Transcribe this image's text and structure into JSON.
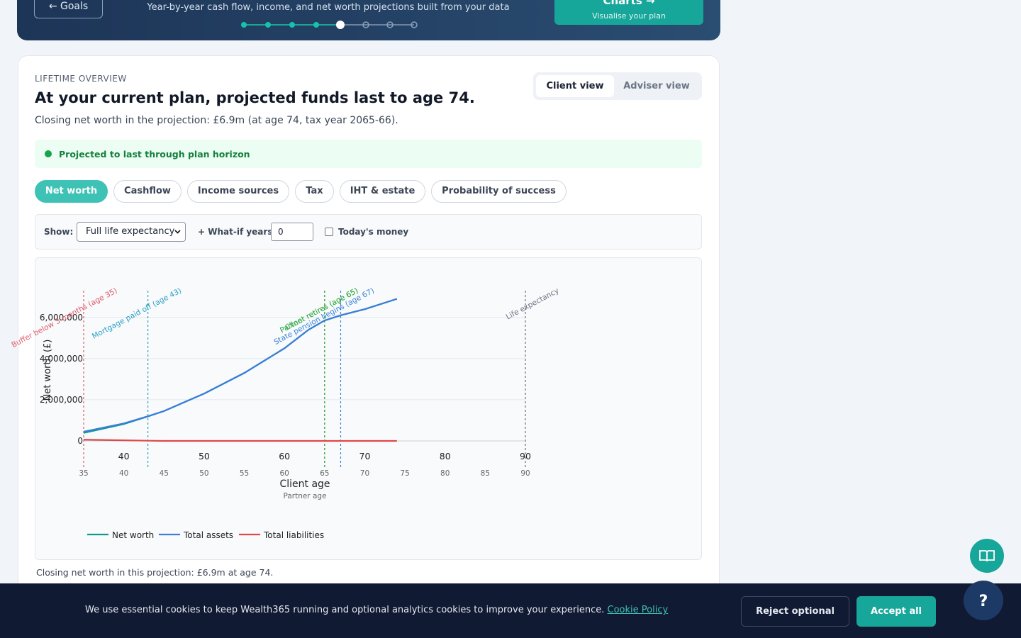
{
  "header": {
    "back_button": "← Goals",
    "subtitle": "Year-by-year cash flow, income, and net worth projections built from your data",
    "next_button": {
      "title": "Charts →",
      "subtitle": "Visualise your plan"
    }
  },
  "overview": {
    "eyebrow": "LIFETIME OVERVIEW",
    "heading": "At your current plan, projected funds last to age 74.",
    "summary": "Closing net worth in the projection: £6.9m (at age 74, tax year 2065-66).",
    "view_toggle": [
      "Client view",
      "Adviser view"
    ],
    "status": "Projected to last through plan horizon",
    "tabs": [
      "Net worth",
      "Cashflow",
      "Income sources",
      "Tax",
      "IHT & estate",
      "Probability of success"
    ],
    "controls": {
      "show_label": "Show:",
      "show_value": "Full life expectancy",
      "whatif_label": "+ What-if years:",
      "whatif_value": 0,
      "todays_money": "Today's money"
    }
  },
  "chart_data": {
    "type": "line",
    "y_label": "Net worth (£)",
    "x_label": "Client age",
    "x2_label": "Partner age",
    "x": [
      35,
      40,
      43,
      45,
      50,
      55,
      60,
      63,
      65,
      67,
      70,
      74
    ],
    "series": [
      {
        "name": "Net worth",
        "color": "#0f9a8c",
        "values": [
          390000,
          820000,
          1190000,
          1450000,
          2300000,
          3300000,
          4500000,
          5400000,
          5850000,
          6100000,
          6400000,
          6900000
        ]
      },
      {
        "name": "Total assets",
        "color": "#3b7dd8",
        "values": [
          450000,
          850000,
          1200000,
          1450000,
          2300000,
          3300000,
          4500000,
          5400000,
          5850000,
          6100000,
          6400000,
          6900000
        ]
      },
      {
        "name": "Total liabilities",
        "color": "#e04848",
        "values": [
          60000,
          30000,
          10000,
          0,
          0,
          0,
          0,
          0,
          0,
          0,
          0,
          0
        ]
      }
    ],
    "xlim": [
      35,
      90
    ],
    "xticks": [
      40,
      50,
      60,
      70,
      80,
      90
    ],
    "x2ticks": [
      35,
      40,
      45,
      50,
      55,
      60,
      65,
      70,
      75,
      80,
      85,
      90
    ],
    "ylim": [
      0,
      7300000
    ],
    "yticks": [
      0,
      {
        "value": 2000000,
        "label": "2,000,000"
      },
      {
        "value": 4000000,
        "label": "4,000,000"
      },
      {
        "value": 6000000,
        "label": "6,000,000"
      }
    ],
    "grid": true,
    "annotations": [
      {
        "x": 35,
        "label": "Buffer below 3 months (age 35)",
        "color": "#e05c6a"
      },
      {
        "x": 43,
        "label": "Mortgage paid off (age 43)",
        "color": "#2a9fc4"
      },
      {
        "x": 65,
        "label": "Partner retires (age 65)",
        "color": "#1a9e4a"
      },
      {
        "x": 65,
        "label": "Client retires (age 65)",
        "color": "#3aab3a"
      },
      {
        "x": 67,
        "label": "State pension begins (age 67)",
        "color": "#3b82d6"
      },
      {
        "x": 90,
        "label": "Life expectancy",
        "color": "#6b7280"
      }
    ]
  },
  "footer_note": "Closing net worth in this projection: £6.9m at age 74.",
  "cookie": {
    "text": "We use essential cookies to keep Wealth365 running and optional analytics cookies to improve your experience.",
    "link": "Cookie Policy",
    "reject": "Reject optional",
    "accept": "Accept all"
  }
}
